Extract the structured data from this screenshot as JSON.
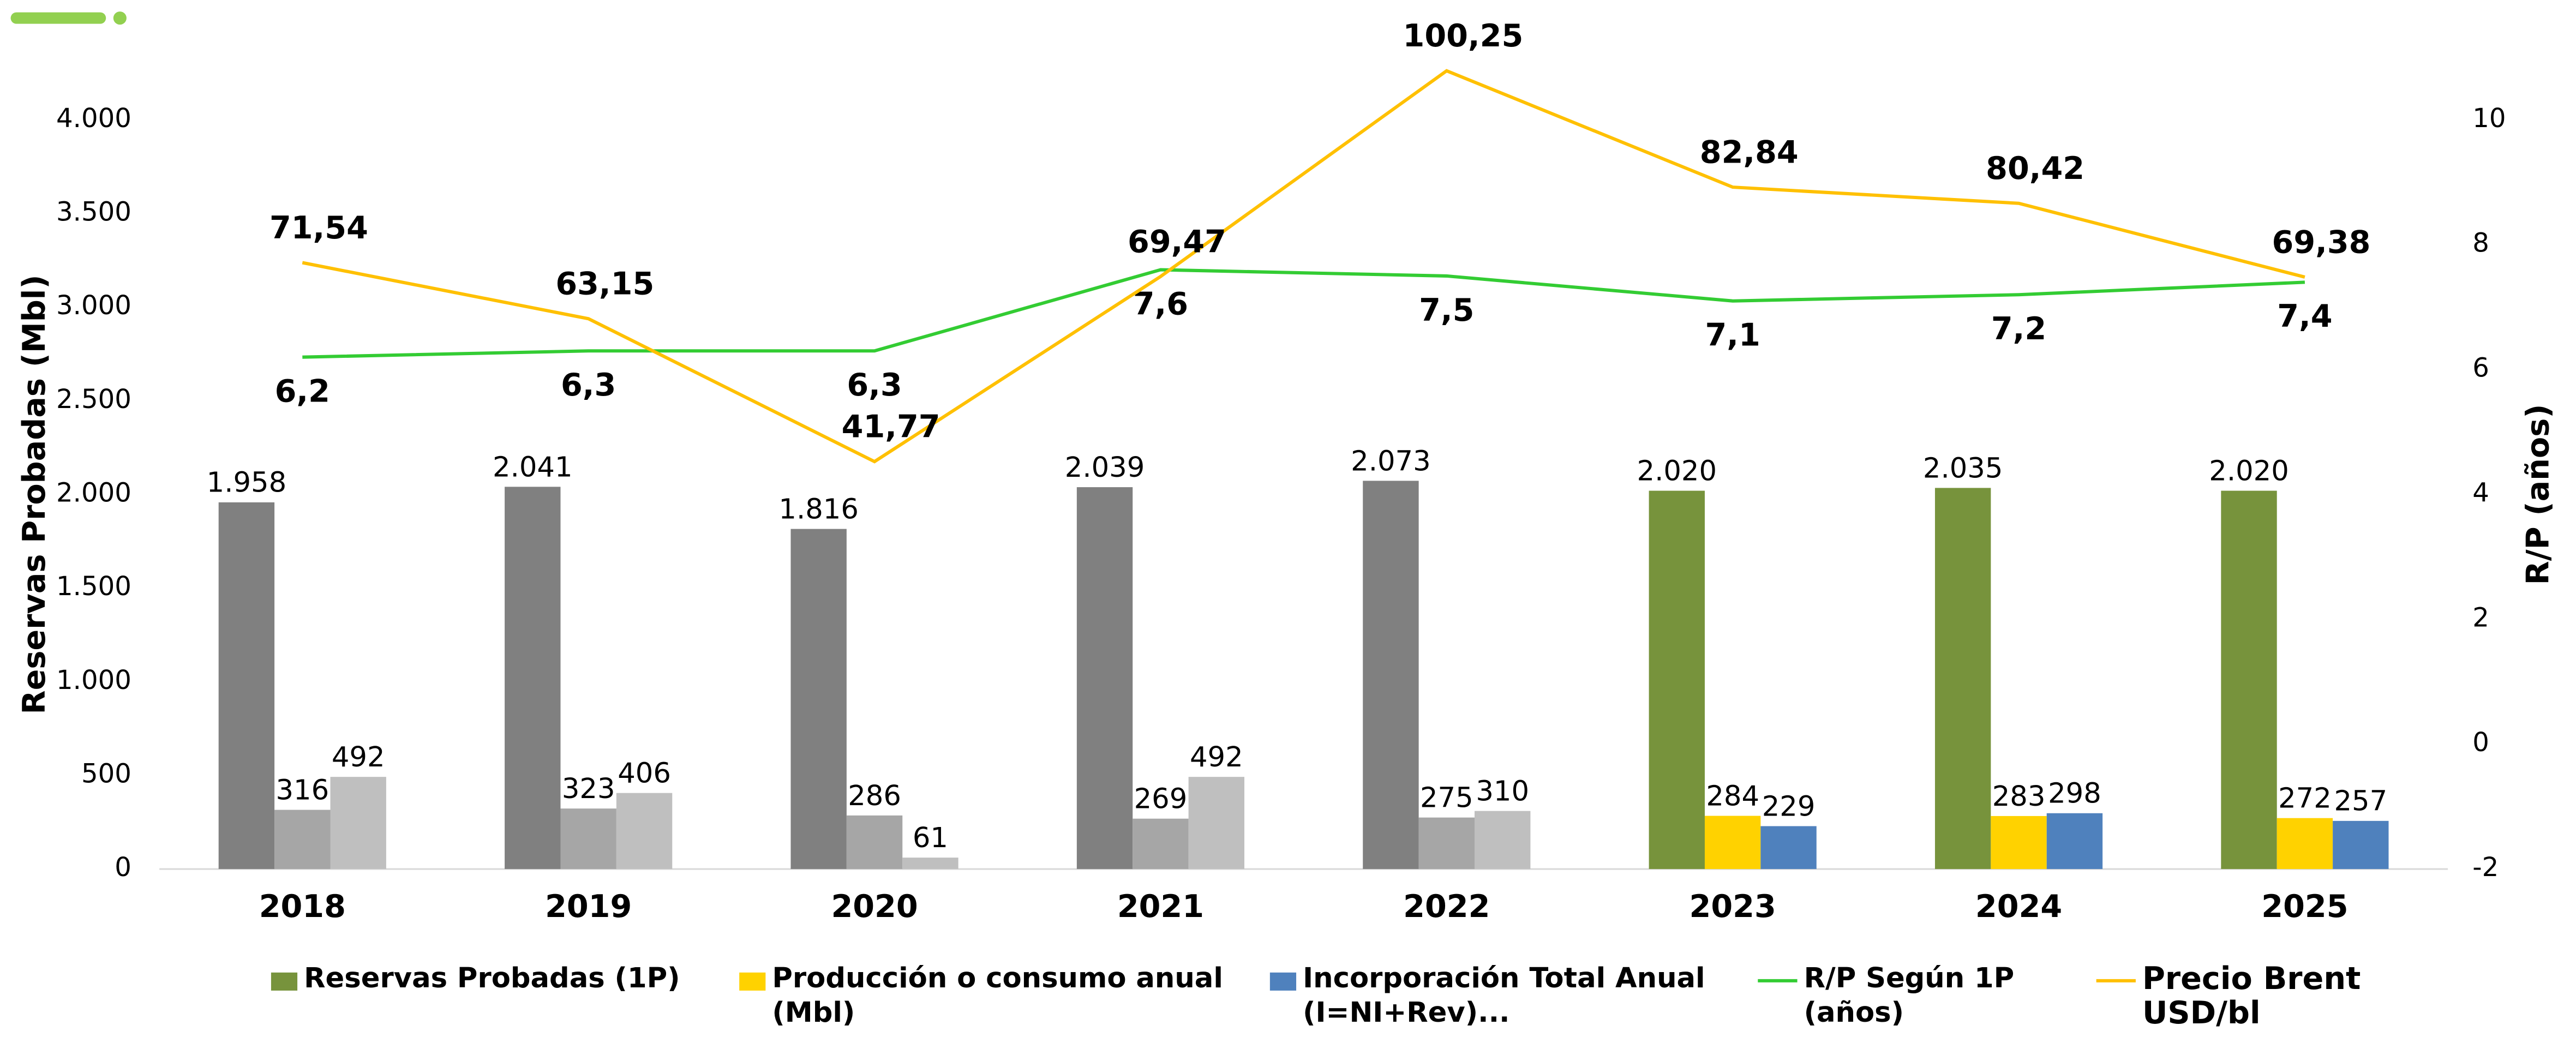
{
  "chart_data": {
    "type": "bar-line",
    "categories": [
      "2018",
      "2019",
      "2020",
      "2021",
      "2022",
      "2023",
      "2024",
      "2025"
    ],
    "ylabel": "Reservas Probadas (Mbl)",
    "y2label": "R/P (años)",
    "ylim": [
      0,
      4000
    ],
    "yticks": [
      0,
      500,
      {
        "value": 1000,
        "label": "1.000"
      },
      {
        "value": 1500,
        "label": "1.500"
      },
      {
        "value": 2000,
        "label": "2.000"
      },
      {
        "value": 2500,
        "label": "2.500"
      },
      {
        "value": 3000,
        "label": "3.000"
      },
      {
        "value": 3500,
        "label": "3.500"
      },
      {
        "value": 4000,
        "label": "4.000"
      }
    ],
    "y2lim": [
      -2,
      10
    ],
    "y2ticks": [
      -2,
      0,
      2,
      4,
      6,
      8,
      10
    ],
    "y3lim": [
      -19.2,
      92.9
    ],
    "series": [
      {
        "name": "Reservas Probadas (1P)",
        "kind": "bar",
        "color": "#77933c",
        "point_colors": [
          "#808080",
          "#808080",
          "#808080",
          "#808080",
          "#808080",
          "#77933c",
          "#77933c",
          "#77933c"
        ],
        "values": [
          1958,
          2041,
          1816,
          2039,
          2073,
          2020,
          2035,
          2020
        ],
        "value_labels": [
          "1.958",
          "2.041",
          "1.816",
          "2.039",
          "2.073",
          "2.020",
          "2.035",
          "2.020"
        ]
      },
      {
        "name": "Producción o consumo anual (Mbl)",
        "kind": "bar",
        "color": "#ffd200",
        "point_colors": [
          "#a6a6a6",
          "#a6a6a6",
          "#a6a6a6",
          "#a6a6a6",
          "#a6a6a6",
          "#ffd200",
          "#ffd200",
          "#ffd200"
        ],
        "values": [
          316,
          323,
          286,
          269,
          275,
          284,
          283,
          272
        ]
      },
      {
        "name": "Incorporación Total Anual (I=NI+Rev)...",
        "kind": "bar",
        "color": "#4f81bd",
        "point_colors": [
          "#bfbfbf",
          "#bfbfbf",
          "#bfbfbf",
          "#bfbfbf",
          "#bfbfbf",
          "#4f81bd",
          "#4f81bd",
          "#4f81bd"
        ],
        "values": [
          492,
          406,
          61,
          492,
          310,
          229,
          298,
          257
        ]
      },
      {
        "name": "R/P Según 1P (años)",
        "kind": "line",
        "axis": "y2",
        "color": "#33cc33",
        "values": [
          6.2,
          6.3,
          6.3,
          7.6,
          7.5,
          7.1,
          7.2,
          7.4
        ],
        "value_labels": [
          "6,2",
          "6,3",
          "6,3",
          "7,6",
          "7,5",
          "7,1",
          "7,2",
          "7,4"
        ]
      },
      {
        "name": "Precio Brent USD/bl",
        "kind": "line",
        "axis": "y3",
        "color": "#ffc000",
        "values": [
          71.54,
          63.15,
          41.77,
          69.47,
          100.25,
          82.84,
          80.42,
          69.38
        ],
        "value_labels": [
          "71,54",
          "63,15",
          "41,77",
          "69,47",
          "100,25",
          "82,84",
          "80,42",
          "69,38"
        ]
      }
    ]
  }
}
